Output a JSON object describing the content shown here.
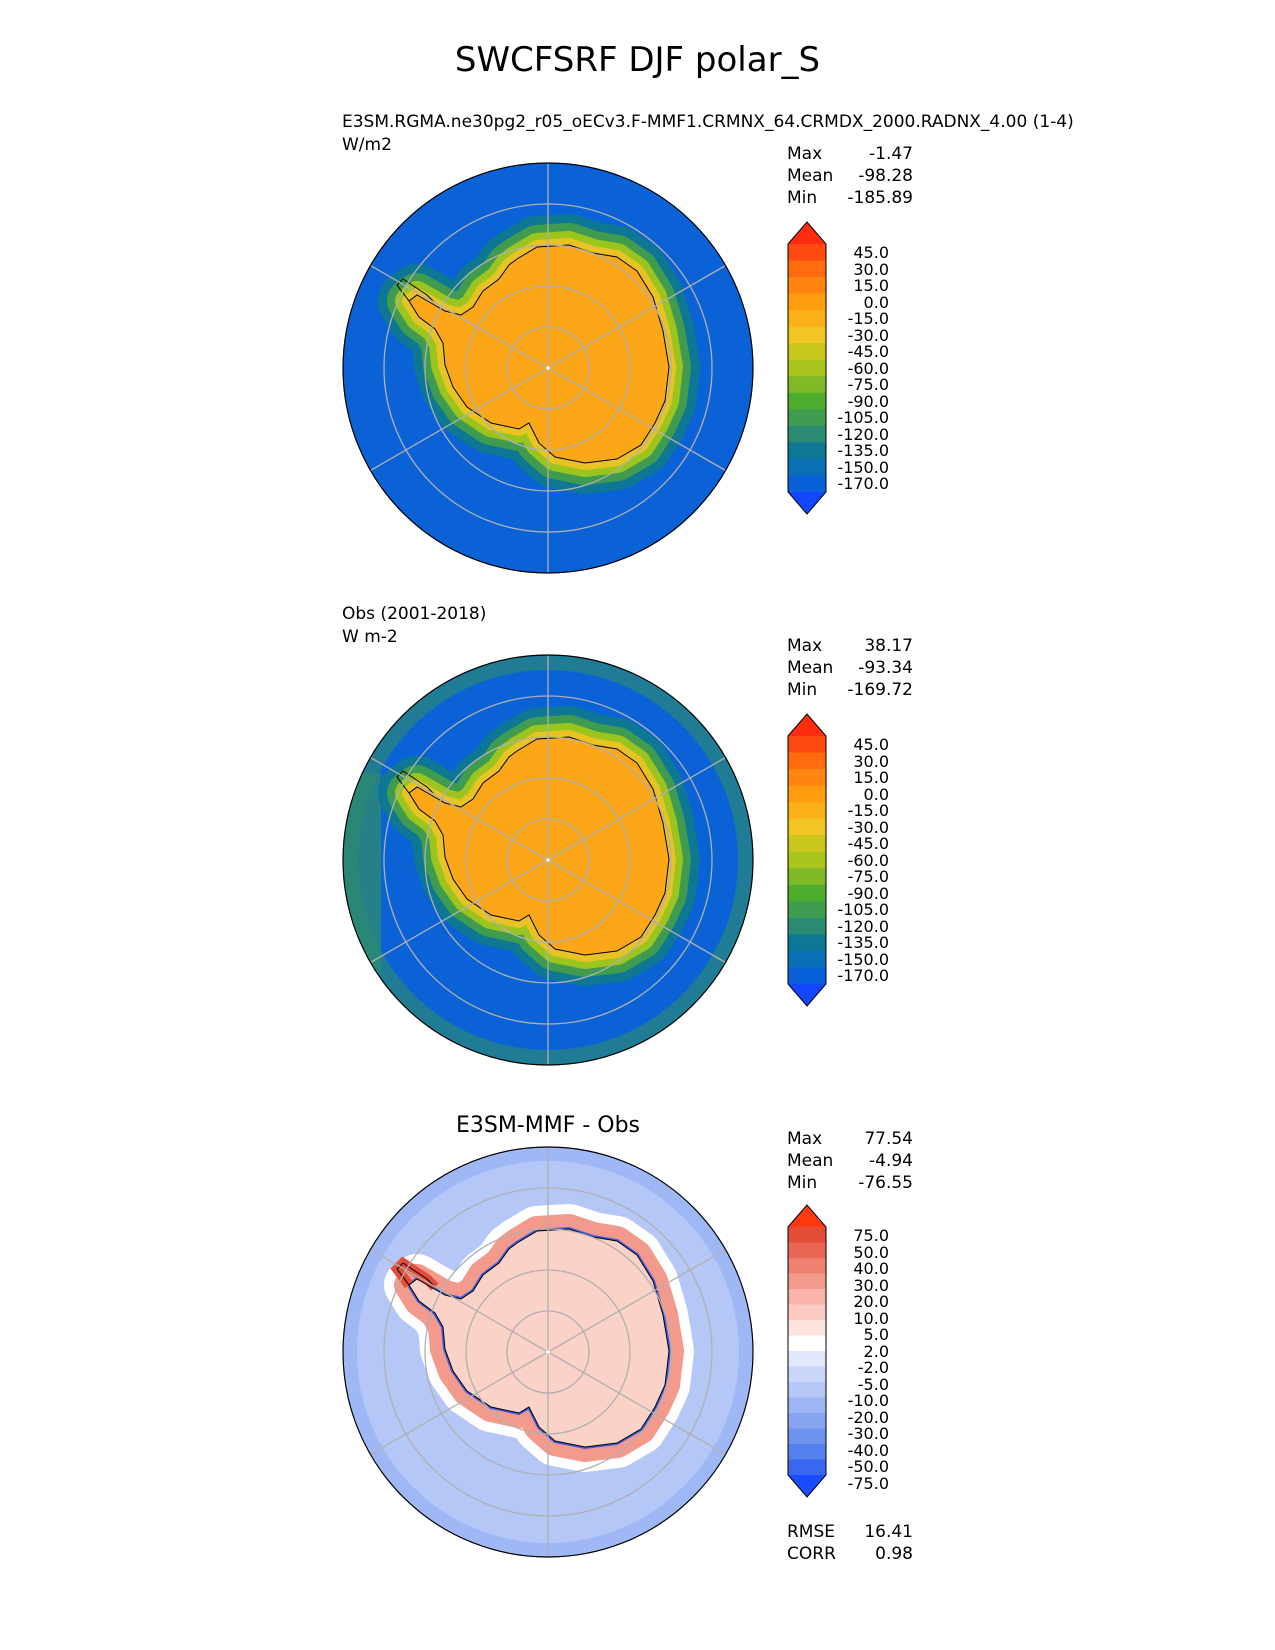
{
  "title": "SWCFSRF DJF polar_S",
  "colors": {
    "abs_levels": [
      "#1246ff",
      "#0861d9",
      "#0a6fb6",
      "#0e7794",
      "#2b8a72",
      "#3f9b50",
      "#4fad2e",
      "#7fba26",
      "#a8c51e",
      "#c9c61c",
      "#f0c524",
      "#fbb018",
      "#ff9c10",
      "#ff8510",
      "#ff6c10",
      "#ff4a10",
      "#ff2d10"
    ],
    "diff_levels": [
      "#1a4cff",
      "#3a67f2",
      "#5581ee",
      "#6e93ee",
      "#87a4f0",
      "#9eb6f3",
      "#b4c7f6",
      "#c9d6f9",
      "#e2e8fb",
      "#ffffff",
      "#fde2de",
      "#fbcac2",
      "#f9b3a8",
      "#f49a8c",
      "#ef8170",
      "#ea6756",
      "#e44c3a",
      "#ff3a10"
    ],
    "ocean_abs": "#0a62d6",
    "land_abs": "#fba718",
    "ocean_diff": "#9fb8f5",
    "land_diff": "#fbd2c8"
  },
  "panels": [
    {
      "title": "E3SM.RGMA.ne30pg2_r05_oECv3.F-MMF1.CRMNX_64.CRMDX_2000.RADNX_4.00 (1-4)",
      "units": "W/m2",
      "stats": [
        {
          "label": "Max",
          "value": "-1.47"
        },
        {
          "label": "Mean",
          "value": "-98.28"
        },
        {
          "label": "Min",
          "value": "-185.89"
        }
      ],
      "colorbar_ticks": [
        "45.0",
        "30.0",
        "15.0",
        "0.0",
        "-15.0",
        "-30.0",
        "-45.0",
        "-60.0",
        "-75.0",
        "-90.0",
        "-105.0",
        "-120.0",
        "-135.0",
        "-150.0",
        "-170.0"
      ]
    },
    {
      "title": "Obs (2001-2018)",
      "units": "W m-2",
      "stats": [
        {
          "label": "Max",
          "value": "38.17"
        },
        {
          "label": "Mean",
          "value": "-93.34"
        },
        {
          "label": "Min",
          "value": "-169.72"
        }
      ],
      "colorbar_ticks": [
        "45.0",
        "30.0",
        "15.0",
        "0.0",
        "-15.0",
        "-30.0",
        "-45.0",
        "-60.0",
        "-75.0",
        "-90.0",
        "-105.0",
        "-120.0",
        "-135.0",
        "-150.0",
        "-170.0"
      ]
    },
    {
      "title": "E3SM-MMF - Obs",
      "units": "",
      "stats": [
        {
          "label": "Max",
          "value": "77.54"
        },
        {
          "label": "Mean",
          "value": "-4.94"
        },
        {
          "label": "Min",
          "value": "-76.55"
        }
      ],
      "colorbar_ticks": [
        "75.0",
        "50.0",
        "40.0",
        "30.0",
        "20.0",
        "10.0",
        "5.0",
        "2.0",
        "-2.0",
        "-5.0",
        "-10.0",
        "-20.0",
        "-30.0",
        "-40.0",
        "-50.0",
        "-75.0"
      ],
      "metrics": [
        {
          "label": "RMSE",
          "value": "16.41"
        },
        {
          "label": "CORR",
          "value": "0.98"
        }
      ]
    }
  ],
  "chart_data": [
    {
      "type": "heatmap",
      "projection": "south-polar-stereographic",
      "title": "E3SM.RGMA.ne30pg2_r05_oECv3.F-MMF1.CRMNX_64.CRMDX_2000.RADNX_4.00 (1-4)",
      "units": "W/m2",
      "max": -1.47,
      "mean": -98.28,
      "min": -185.89,
      "levels": [
        -170,
        -150,
        -135,
        -120,
        -105,
        -90,
        -75,
        -60,
        -45,
        -30,
        -15,
        0,
        15,
        30,
        45
      ]
    },
    {
      "type": "heatmap",
      "projection": "south-polar-stereographic",
      "title": "Obs (2001-2018)",
      "units": "W m-2",
      "max": 38.17,
      "mean": -93.34,
      "min": -169.72,
      "levels": [
        -170,
        -150,
        -135,
        -120,
        -105,
        -90,
        -75,
        -60,
        -45,
        -30,
        -15,
        0,
        15,
        30,
        45
      ]
    },
    {
      "type": "heatmap",
      "projection": "south-polar-stereographic",
      "title": "E3SM-MMF - Obs",
      "max": 77.54,
      "mean": -4.94,
      "min": -76.55,
      "rmse": 16.41,
      "corr": 0.98,
      "levels": [
        -75,
        -50,
        -40,
        -30,
        -20,
        -10,
        -5,
        -2,
        2,
        5,
        10,
        20,
        30,
        40,
        50,
        75
      ]
    }
  ]
}
